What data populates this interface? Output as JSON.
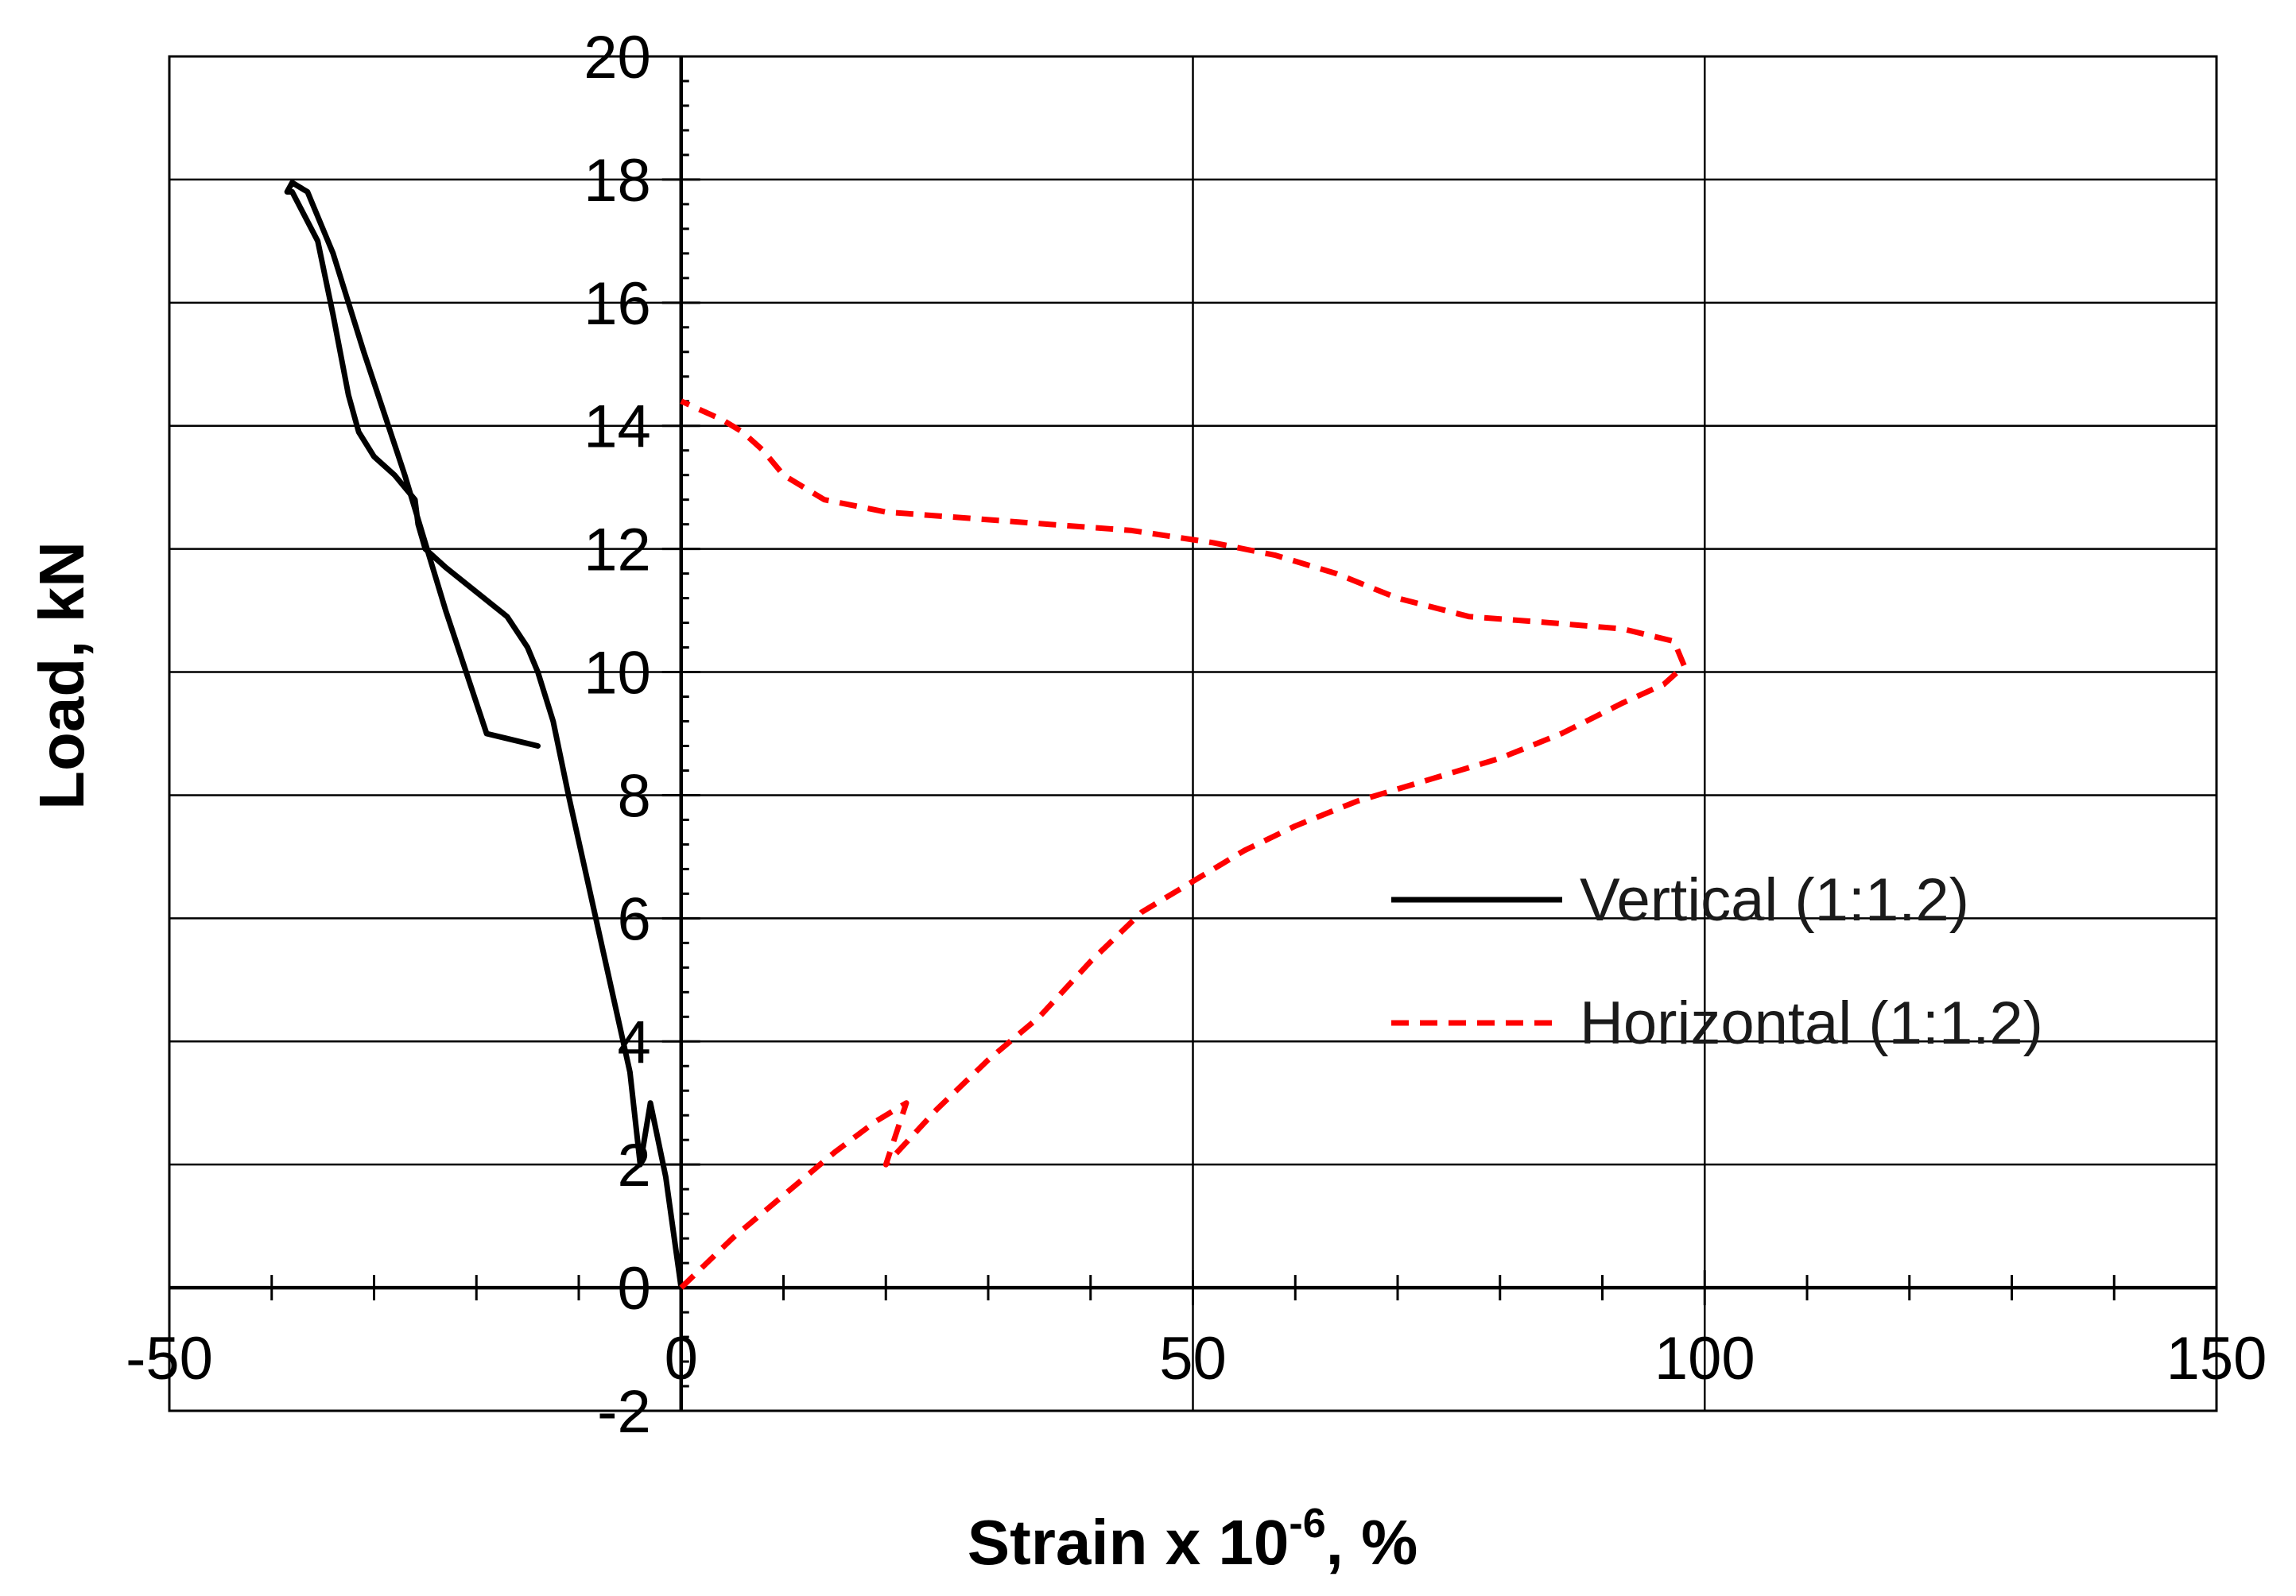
{
  "chart_data": {
    "type": "line",
    "xlabel": "Strain x 10",
    "xlabel_sup": "-6",
    "xlabel_suffix": ", %",
    "ylabel": "Load, kN",
    "xlim": [
      -50,
      150
    ],
    "ylim": [
      -2,
      20
    ],
    "grid": true,
    "legend_position": "center-right",
    "x_ticks": [
      {
        "value": -50,
        "label": "-50"
      },
      {
        "value": 0,
        "label": "0"
      },
      {
        "value": 50,
        "label": "50"
      },
      {
        "value": 100,
        "label": "100"
      },
      {
        "value": 150,
        "label": "150"
      }
    ],
    "y_ticks": [
      {
        "value": -2,
        "label": "-2"
      },
      {
        "value": 0,
        "label": "0"
      },
      {
        "value": 2,
        "label": "2"
      },
      {
        "value": 4,
        "label": "4"
      },
      {
        "value": 6,
        "label": "6"
      },
      {
        "value": 8,
        "label": "8"
      },
      {
        "value": 10,
        "label": "10"
      },
      {
        "value": 12,
        "label": "12"
      },
      {
        "value": 14,
        "label": "14"
      },
      {
        "value": 16,
        "label": "16"
      },
      {
        "value": 18,
        "label": "18"
      },
      {
        "value": 20,
        "label": "20"
      }
    ],
    "series": [
      {
        "name": "Vertical (1:1.2)",
        "color": "#000000",
        "style": "solid",
        "points": [
          [
            0,
            0
          ],
          [
            -1.5,
            1.8
          ],
          [
            -3,
            3.0
          ],
          [
            -4,
            2.0
          ],
          [
            -5,
            3.5
          ],
          [
            -7,
            5.0
          ],
          [
            -9,
            6.5
          ],
          [
            -11,
            8.0
          ],
          [
            -12.5,
            9.2
          ],
          [
            -14,
            10.0
          ],
          [
            -15,
            10.4
          ],
          [
            -17,
            10.9
          ],
          [
            -20,
            11.3
          ],
          [
            -23,
            11.7
          ],
          [
            -25,
            12.0
          ],
          [
            -25.7,
            12.4
          ],
          [
            -26,
            12.8
          ],
          [
            -28,
            13.2
          ],
          [
            -30,
            13.5
          ],
          [
            -31.5,
            13.9
          ],
          [
            -32.5,
            14.5
          ],
          [
            -34,
            15.8
          ],
          [
            -35.5,
            17.0
          ],
          [
            -38,
            17.8
          ],
          [
            -38.5,
            17.8
          ],
          [
            -38,
            17.95
          ],
          [
            -36.5,
            17.8
          ],
          [
            -34,
            16.8
          ],
          [
            -31,
            15.2
          ],
          [
            -27,
            13.2
          ],
          [
            -23,
            11.0
          ],
          [
            -19,
            9.0
          ],
          [
            -14,
            8.8
          ]
        ]
      },
      {
        "name": "Horizontal (1:1.2)",
        "color": "#ff0000",
        "style": "dashed",
        "points": [
          [
            0,
            0
          ],
          [
            5,
            0.8
          ],
          [
            10,
            1.5
          ],
          [
            15,
            2.2
          ],
          [
            19,
            2.7
          ],
          [
            22,
            3.0
          ],
          [
            20,
            2.0
          ],
          [
            25,
            2.9
          ],
          [
            30,
            3.7
          ],
          [
            35,
            4.4
          ],
          [
            40,
            5.3
          ],
          [
            45,
            6.1
          ],
          [
            50,
            6.6
          ],
          [
            55,
            7.1
          ],
          [
            60,
            7.5
          ],
          [
            66,
            7.9
          ],
          [
            72,
            8.2
          ],
          [
            80,
            8.6
          ],
          [
            86,
            9.0
          ],
          [
            92,
            9.5
          ],
          [
            96,
            9.8
          ],
          [
            98,
            10.1
          ],
          [
            97,
            10.5
          ],
          [
            92,
            10.7
          ],
          [
            85,
            10.8
          ],
          [
            77,
            10.9
          ],
          [
            70,
            11.2
          ],
          [
            64,
            11.6
          ],
          [
            58,
            11.9
          ],
          [
            52,
            12.1
          ],
          [
            44,
            12.3
          ],
          [
            36,
            12.4
          ],
          [
            28,
            12.5
          ],
          [
            20,
            12.6
          ],
          [
            14,
            12.8
          ],
          [
            10,
            13.2
          ],
          [
            8,
            13.6
          ],
          [
            6,
            13.9
          ],
          [
            4,
            14.1
          ],
          [
            2,
            14.25
          ],
          [
            0,
            14.4
          ]
        ]
      }
    ]
  }
}
